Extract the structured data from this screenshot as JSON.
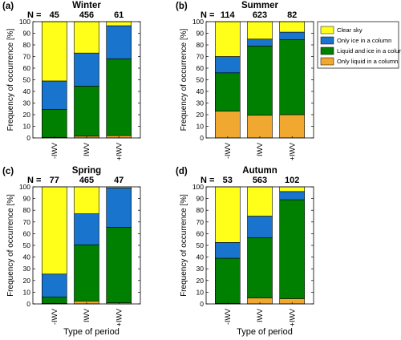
{
  "colors": {
    "clear_sky": "#ffff1a",
    "only_ice": "#1874cd",
    "liquid_and_ice": "#008000",
    "only_liquid": "#f0a830"
  },
  "legend": [
    "Clear sky",
    "Only ice in a column",
    "Liquid and ice in a column",
    "Only liquid in a column"
  ],
  "shared_xlabel": "Type of period",
  "chart_data": [
    {
      "type": "bar",
      "stacked": true,
      "panel_label": "(a)",
      "title": "Winter",
      "n_prefix": "N =",
      "n_values": [
        "45",
        "456",
        "61"
      ],
      "categories": [
        "-IWV",
        "IWV",
        "+IWV"
      ],
      "ylabel": "Frequency of occurrence  [%]",
      "ylim": [
        0,
        100
      ],
      "yticks": [
        0,
        10,
        20,
        30,
        40,
        50,
        60,
        70,
        80,
        90,
        100
      ],
      "series": [
        {
          "name": "Only liquid in a column",
          "values": [
            0.5,
            1.5,
            2
          ]
        },
        {
          "name": "Liquid and ice in a column",
          "values": [
            24,
            43,
            66
          ]
        },
        {
          "name": "Only ice in a column",
          "values": [
            24.5,
            28.5,
            28.5
          ]
        },
        {
          "name": "Clear sky",
          "values": [
            51,
            27,
            3.5
          ]
        }
      ]
    },
    {
      "type": "bar",
      "stacked": true,
      "panel_label": "(b)",
      "title": "Summer",
      "n_prefix": "N =",
      "n_values": [
        "114",
        "623",
        "82"
      ],
      "categories": [
        "-IWV",
        "IWV",
        "+IWV"
      ],
      "ylabel": "Frequency of occurrence  [%]",
      "ylim": [
        0,
        100
      ],
      "yticks": [
        0,
        10,
        20,
        30,
        40,
        50,
        60,
        70,
        80,
        90,
        100
      ],
      "series": [
        {
          "name": "Only liquid in a column",
          "values": [
            23,
            19.5,
            20
          ]
        },
        {
          "name": "Liquid and ice in a column",
          "values": [
            33,
            59.5,
            64.5
          ]
        },
        {
          "name": "Only ice in a column",
          "values": [
            14,
            6,
            6.5
          ]
        },
        {
          "name": "Clear sky",
          "values": [
            30,
            15,
            9
          ]
        }
      ],
      "show_legend": true
    },
    {
      "type": "bar",
      "stacked": true,
      "panel_label": "(c)",
      "title": "Spring",
      "n_prefix": "N =",
      "n_values": [
        "77",
        "465",
        "47"
      ],
      "categories": [
        "-IWV",
        "IWV",
        "+IWV"
      ],
      "ylabel": "Frequency of occurrence  [%]",
      "ylim": [
        0,
        100
      ],
      "yticks": [
        0,
        10,
        20,
        30,
        40,
        50,
        60,
        70,
        80,
        90,
        100
      ],
      "series": [
        {
          "name": "Only liquid in a column",
          "values": [
            0.5,
            2.5,
            1
          ]
        },
        {
          "name": "Liquid and ice in a column",
          "values": [
            5.5,
            48,
            64.5
          ]
        },
        {
          "name": "Only ice in a column",
          "values": [
            19.5,
            26.5,
            33.5
          ]
        },
        {
          "name": "Clear sky",
          "values": [
            74.5,
            23,
            1
          ]
        }
      ]
    },
    {
      "type": "bar",
      "stacked": true,
      "panel_label": "(d)",
      "title": "Autumn",
      "n_prefix": "N =",
      "n_values": [
        "53",
        "563",
        "102"
      ],
      "categories": [
        "-IWV",
        "IWV",
        "+IWV"
      ],
      "ylabel": "Frequency of occurrence  [%]",
      "ylim": [
        0,
        100
      ],
      "yticks": [
        0,
        10,
        20,
        30,
        40,
        50,
        60,
        70,
        80,
        90,
        100
      ],
      "series": [
        {
          "name": "Only liquid in a column",
          "values": [
            0.5,
            5,
            4.5
          ]
        },
        {
          "name": "Liquid and ice in a column",
          "values": [
            38.5,
            51.5,
            84.5
          ]
        },
        {
          "name": "Only ice in a column",
          "values": [
            13.5,
            18.5,
            7
          ]
        },
        {
          "name": "Clear sky",
          "values": [
            47.5,
            25,
            4
          ]
        }
      ]
    }
  ]
}
